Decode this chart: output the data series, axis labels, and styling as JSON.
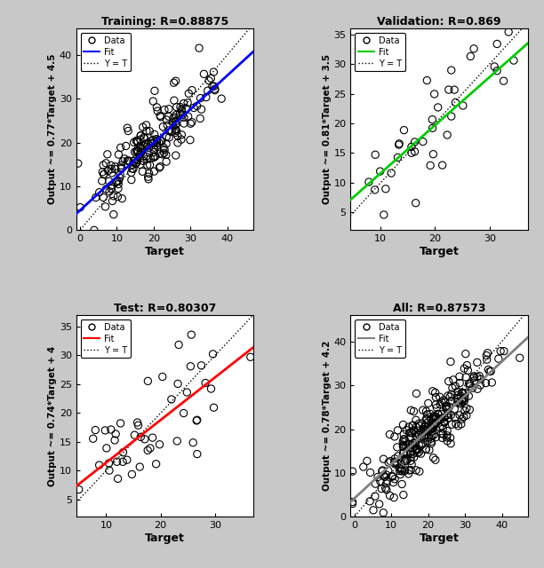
{
  "subplots": [
    {
      "title": "Training: R=0.88875",
      "ylabel": "Output ~= 0.77*Target + 4.5",
      "xlabel": "Target",
      "fit_color": "#0000FF",
      "fit_slope": 0.77,
      "fit_intercept": 4.5,
      "xlim": [
        -1,
        47
      ],
      "ylim": [
        0,
        46
      ],
      "xticks": [
        0,
        10,
        20,
        30,
        40
      ],
      "yticks": [
        0,
        10,
        20,
        30,
        40
      ],
      "n_points": 200,
      "x_mean": 20.0,
      "x_std": 8.0,
      "noise": 3.5,
      "seed": 1
    },
    {
      "title": "Validation: R=0.869",
      "ylabel": "Output ~= 0.81*Target + 3.5",
      "xlabel": "Target",
      "fit_color": "#00CC00",
      "fit_slope": 0.81,
      "fit_intercept": 3.5,
      "xlim": [
        4.5,
        37
      ],
      "ylim": [
        2,
        36
      ],
      "xticks": [
        10,
        20,
        30
      ],
      "yticks": [
        5,
        10,
        15,
        20,
        25,
        30,
        35
      ],
      "n_points": 40,
      "x_mean": 18.0,
      "x_std": 7.0,
      "noise": 4.0,
      "seed": 2
    },
    {
      "title": "Test: R=0.80307",
      "ylabel": "Output ~= 0.74*Target + 4",
      "xlabel": "Target",
      "fit_color": "#FF0000",
      "fit_slope": 0.74,
      "fit_intercept": 4,
      "xlim": [
        4.5,
        37
      ],
      "ylim": [
        2,
        37
      ],
      "xticks": [
        10,
        20,
        30
      ],
      "yticks": [
        5,
        10,
        15,
        20,
        25,
        30,
        35
      ],
      "n_points": 50,
      "x_mean": 18.0,
      "x_std": 7.0,
      "noise": 4.5,
      "seed": 3
    },
    {
      "title": "All: R=0.87573",
      "ylabel": "Output ~= 0.78*Target + 4.2",
      "xlabel": "Target",
      "fit_color": "#808080",
      "fit_slope": 0.78,
      "fit_intercept": 4.2,
      "xlim": [
        -1,
        47
      ],
      "ylim": [
        0,
        46
      ],
      "xticks": [
        0,
        10,
        20,
        30,
        40
      ],
      "yticks": [
        0,
        10,
        20,
        30,
        40
      ],
      "n_points": 290,
      "x_mean": 20.0,
      "x_std": 8.0,
      "noise": 3.5,
      "seed": 4
    }
  ],
  "bg_color": "#C8C8C8",
  "panel_bg": "#FFFFFF"
}
